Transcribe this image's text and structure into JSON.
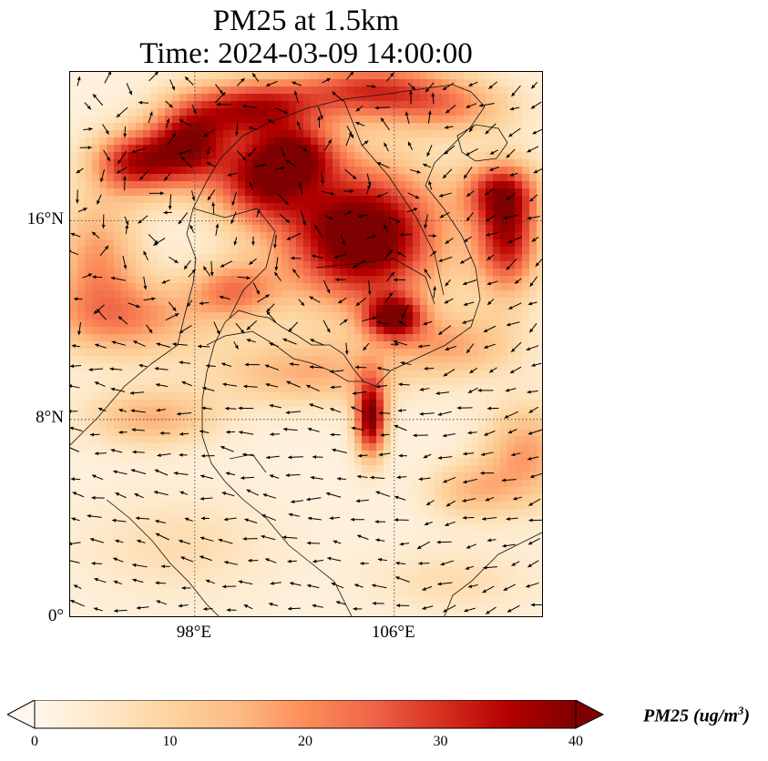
{
  "title": {
    "line1": "PM25 at 1.5km",
    "line2": "Time: 2024-03-09 14:00:00"
  },
  "map": {
    "lat_range": [
      0,
      22
    ],
    "lon_range": [
      93,
      112
    ],
    "lat_ticks": [
      {
        "value": 0,
        "label": "0°"
      },
      {
        "value": 8,
        "label": "8°N"
      },
      {
        "value": 16,
        "label": "16°N"
      }
    ],
    "lon_ticks": [
      {
        "value": 98,
        "label": "98°E"
      },
      {
        "value": 106,
        "label": "106°E"
      }
    ],
    "gridlines": "dotted",
    "wind_vectors": "shown"
  },
  "colorbar": {
    "colormap": "OrRd",
    "min": 0,
    "max": 40,
    "ticks": [
      "0",
      "10",
      "20",
      "30",
      "40"
    ],
    "extend": "both",
    "label_main": "PM25 (ug/m",
    "label_sup": "3",
    "label_end": ")",
    "colors": [
      "#fff7ec",
      "#fee8c8",
      "#fdd49e",
      "#fdbb84",
      "#fc8d59",
      "#ef6548",
      "#d7301f",
      "#b30000",
      "#7f0000"
    ]
  }
}
